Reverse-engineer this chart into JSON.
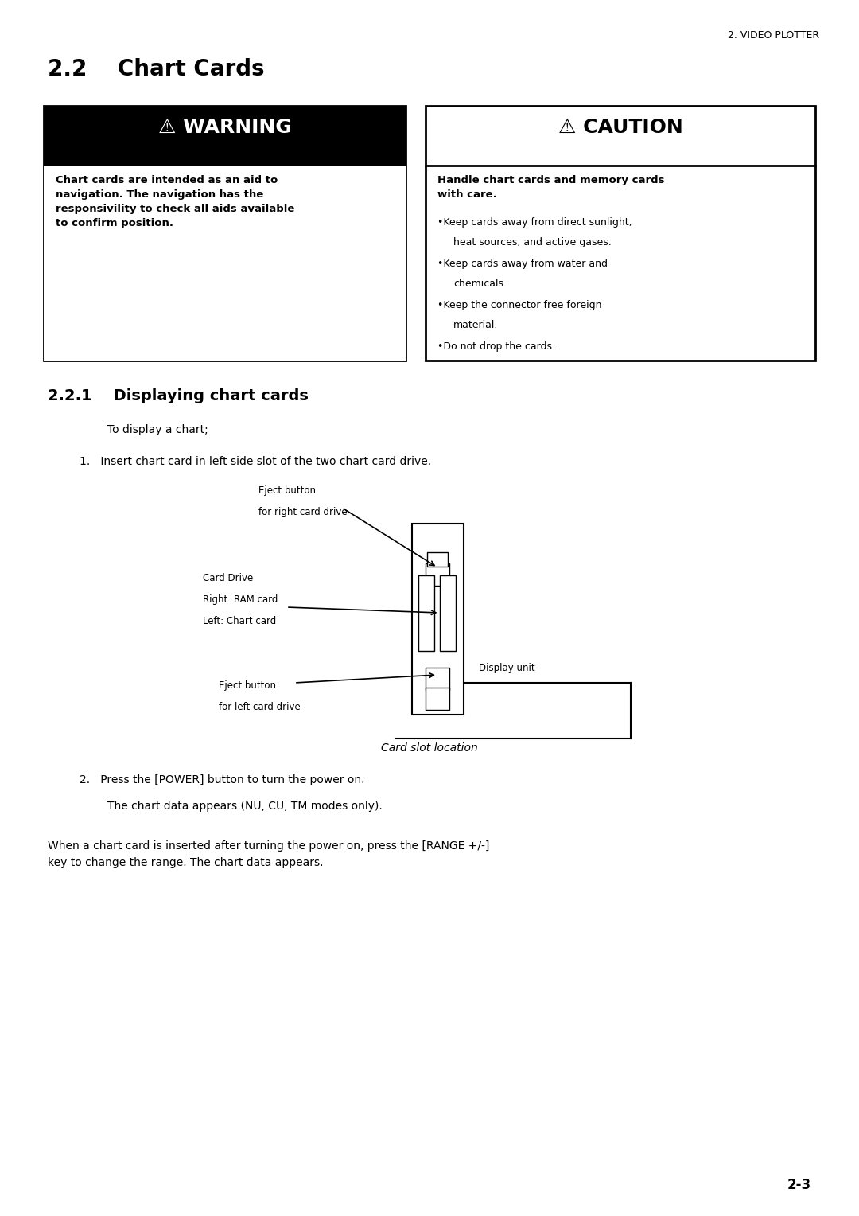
{
  "header_text": "2. VIDEO PLOTTER",
  "section_title": "2.2    Chart Cards",
  "warning_title": "⚠ WARNING",
  "warning_body": "Chart cards are intended as an aid to\nnavigation. The navigation has the\nresponsivility to check all aids available\nto confirm position.",
  "caution_title": "⚠ CAUTION",
  "caution_bold": "Handle chart cards and memory cards\nwith care.",
  "caution_bullets": [
    "Keep cards away from direct sunlight,\nheat sources, and active gases.",
    "Keep cards away from water and\nchemicals.",
    "Keep the connector free foreign\nmaterial.",
    "Do not drop the cards."
  ],
  "subsection_title": "2.2.1    Displaying chart cards",
  "intro_text": "To display a chart;",
  "step1_text": "1.   Insert chart card in left side slot of the two chart card drive.",
  "caption_text": "Card slot location",
  "step2_text": "2.   Press the [POWER] button to turn the power on.",
  "step2_sub": "The chart data appears (NU, CU, TM modes only).",
  "para_text": "When a chart card is inserted after turning the power on, press the [RANGE +/-]\nkey to change the range. The chart data appears.",
  "page_num": "2-3",
  "bg_color": "#ffffff",
  "text_color": "#000000"
}
